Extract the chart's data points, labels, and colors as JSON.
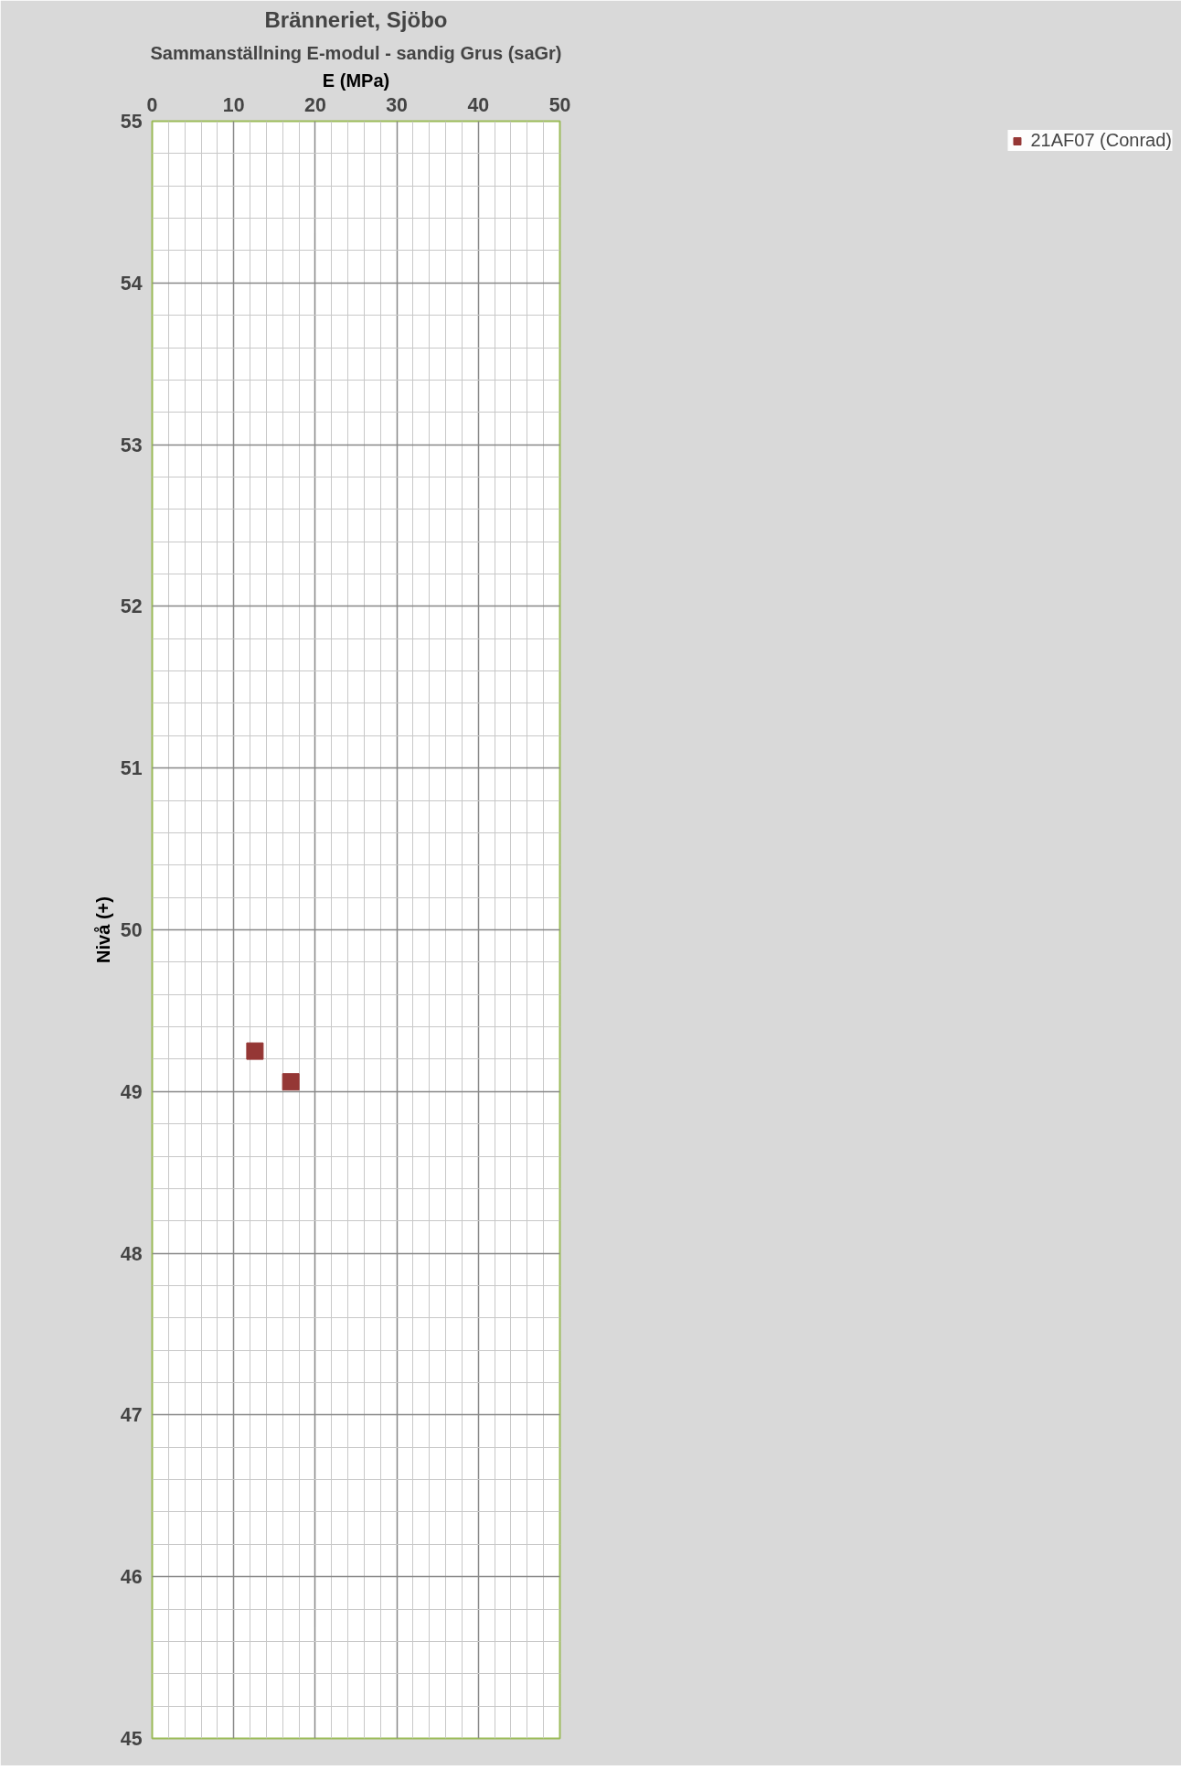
{
  "chart_data": {
    "type": "scatter",
    "title": "Bränneriet, Sjöbo",
    "subtitle": "Sammanställning E-modul - sandig Grus (saGr)",
    "xlabel": "E (MPa)",
    "ylabel": "Nivå (+)",
    "xlim": [
      0,
      50
    ],
    "xticks": [
      0,
      10,
      20,
      30,
      40,
      50
    ],
    "ylim": [
      45,
      55
    ],
    "yticks": [
      45,
      46,
      47,
      48,
      49,
      50,
      51,
      52,
      53,
      54,
      55
    ],
    "grid": true,
    "legend": "right",
    "marker": "square",
    "series": [
      {
        "name": "21AF07 (Conrad)",
        "color": "#953735",
        "x": [
          12.6,
          17.0
        ],
        "values": [
          49.25,
          49.06
        ]
      }
    ]
  }
}
